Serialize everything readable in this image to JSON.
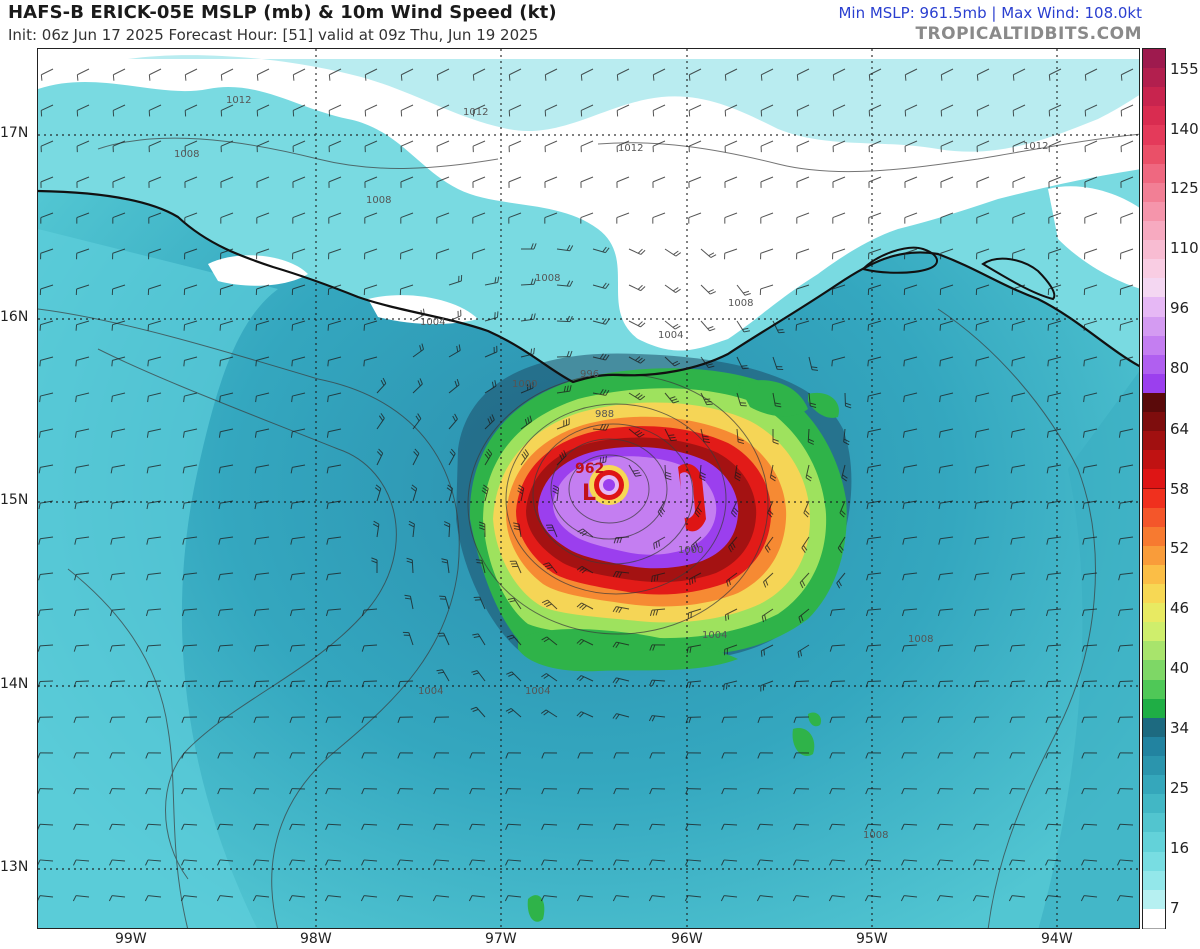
{
  "header": {
    "title": "HAFS-B ERICK-05E MSLP (mb) & 10m Wind Speed (kt)",
    "subtitle": "Init: 06z Jun 17 2025   Forecast Hour: [51]   valid at 09z Thu, Jun 19 2025",
    "stats": "Min MSLP: 961.5mb | Max Wind: 108.0kt",
    "brand": "TROPICALTIDBITS.COM"
  },
  "map": {
    "lat_labels": [
      "17N",
      "16N",
      "15N",
      "14N",
      "13N"
    ],
    "lon_labels": [
      "99W",
      "98W",
      "97W",
      "96W",
      "95W",
      "94W"
    ],
    "center_low": {
      "pressure_label": "962",
      "symbol": "L"
    },
    "isobar_labels": [
      "1012",
      "1012",
      "1012",
      "1012",
      "1008",
      "1008",
      "1008",
      "1008",
      "1004",
      "1004",
      "1004",
      "1004",
      "1004",
      "1008",
      "1000",
      "996",
      "988",
      "1000",
      "1008"
    ],
    "colors": {
      "land": "#ffffff",
      "coast": "#111111",
      "grid": "#1a1a1a",
      "low_label": "#c0101a"
    }
  },
  "colorbar": {
    "labels": [
      "155",
      "140",
      "125",
      "110",
      "96",
      "80",
      "64",
      "58",
      "52",
      "46",
      "40",
      "34",
      "25",
      "16",
      "7"
    ],
    "colors": [
      "#9e1a4e",
      "#b21f4e",
      "#c8244e",
      "#d92c50",
      "#e43a5a",
      "#ea5068",
      "#ef6880",
      "#f27f95",
      "#f595ab",
      "#f7aac0",
      "#f8bcd2",
      "#f9cde3",
      "#f4d7f2",
      "#e6b8f5",
      "#d49bf2",
      "#c47ef1",
      "#b05ff0",
      "#9b3fee",
      "#5a0a0a",
      "#7e0d0d",
      "#a11010",
      "#c01212",
      "#de1515",
      "#f0301e",
      "#f4562a",
      "#f77a30",
      "#f99c3a",
      "#fbbe46",
      "#f7d854",
      "#e8ea62",
      "#cfee6c",
      "#a8e46c",
      "#7ed766",
      "#4fc857",
      "#1fae45",
      "#1d6a80",
      "#2283a0",
      "#2b95ad",
      "#35a7bb",
      "#42b7c5",
      "#52c5cf",
      "#63d2d9",
      "#78dde2",
      "#93e7ea",
      "#b6f0f1",
      "#ffffff"
    ]
  }
}
